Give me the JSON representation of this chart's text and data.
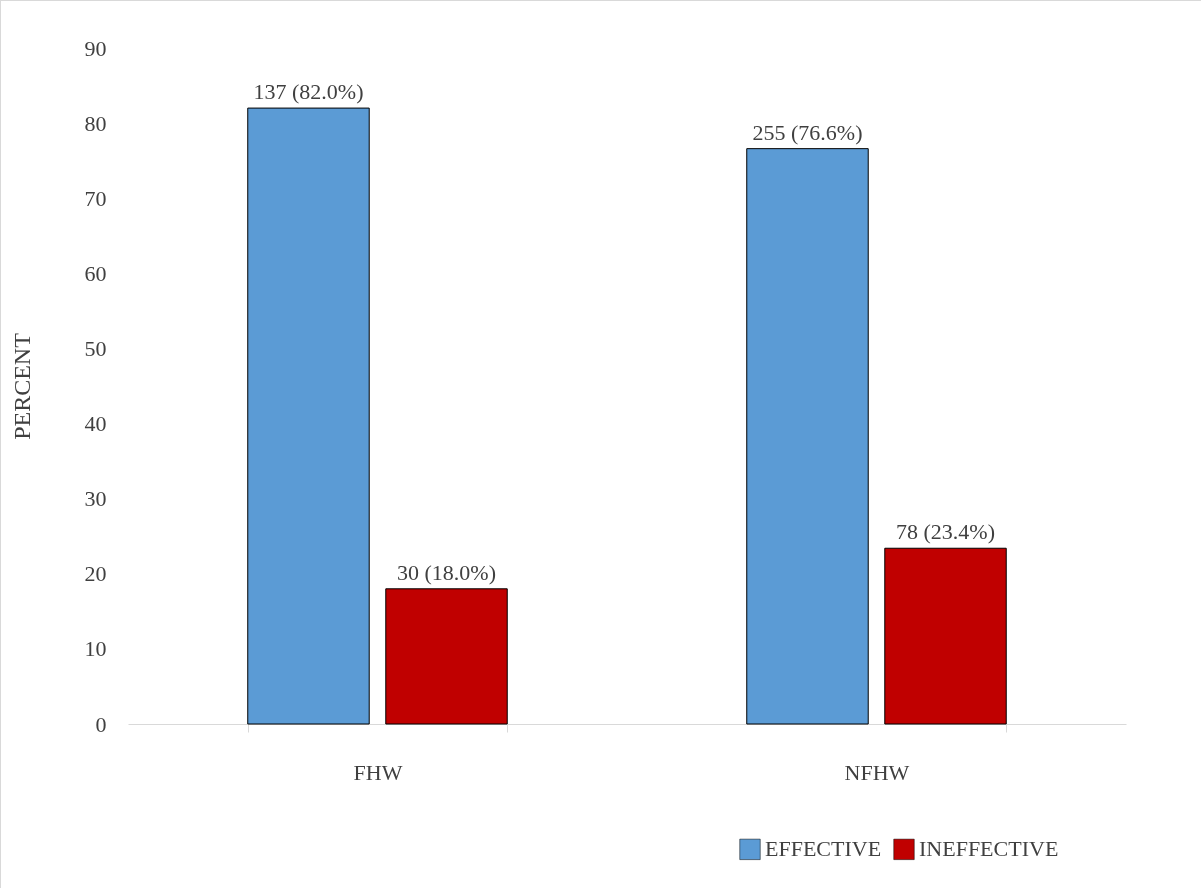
{
  "chart_data": {
    "type": "bar",
    "ylabel": "PERCENT",
    "categories": [
      "FHW",
      "NFHW"
    ],
    "series": [
      {
        "name": "EFFECTIVE",
        "color": "#5b9bd5",
        "values": [
          82.0,
          76.6
        ],
        "value_labels": [
          "137 (82.0%)",
          "255 (76.6%)"
        ]
      },
      {
        "name": "INEFFECTIVE",
        "color": "#c00000",
        "values": [
          18.0,
          23.4
        ],
        "value_labels": [
          "30 (18.0%)",
          "78 (23.4%)"
        ]
      }
    ],
    "ylim": [
      0,
      90
    ],
    "yticks": [
      0,
      10,
      20,
      30,
      40,
      50,
      60,
      70,
      80,
      90
    ],
    "grid": false,
    "legend": "bottom right"
  }
}
